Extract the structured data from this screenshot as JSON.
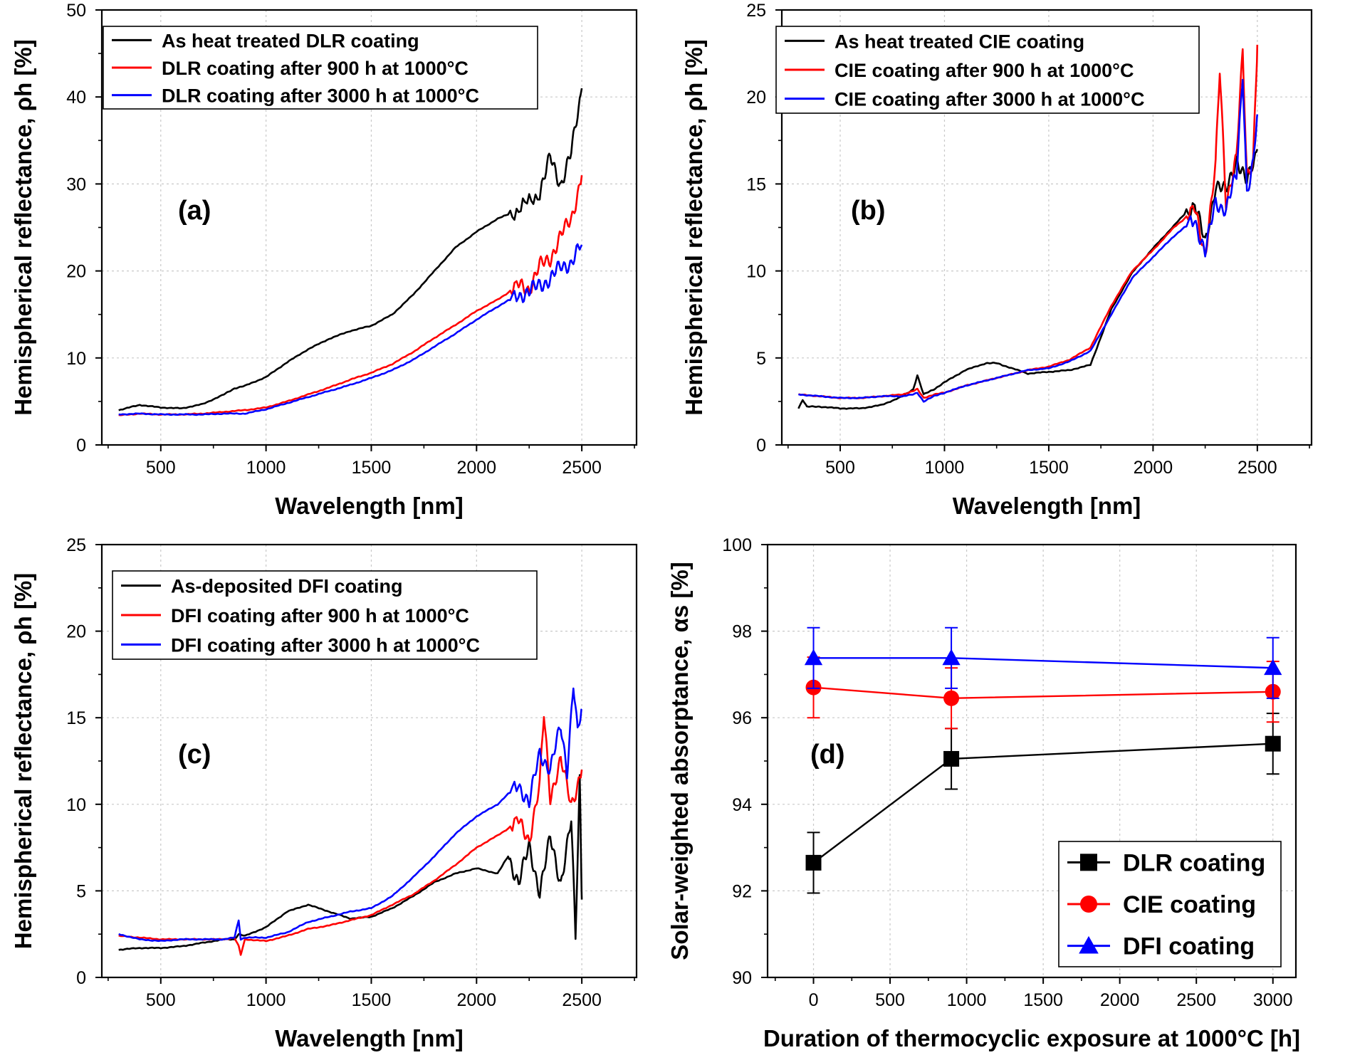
{
  "figure_title": "",
  "chart_data": [
    {
      "panel": "(a)",
      "type": "line",
      "xlabel": "Wavelength [nm]",
      "ylabel": "Hemispherical reflectance, ρh [%]",
      "xlim": [
        220,
        2760
      ],
      "ylim": [
        0,
        50
      ],
      "xticks": [
        500,
        1000,
        1500,
        2000,
        2500
      ],
      "yticks": [
        0,
        10,
        20,
        30,
        40,
        50
      ],
      "grid": true,
      "legend_position": "top-left",
      "series": [
        {
          "name": "As heat treated DLR coating",
          "color": "#000000",
          "x": [
            300,
            400,
            500,
            600,
            700,
            800,
            850,
            900,
            1000,
            1100,
            1200,
            1300,
            1400,
            1500,
            1600,
            1700,
            1800,
            1900,
            2000,
            2100,
            2200,
            2300,
            2350,
            2400,
            2450,
            2500
          ],
          "y": [
            4.0,
            4.6,
            4.3,
            4.2,
            4.7,
            5.8,
            6.5,
            6.8,
            7.8,
            9.5,
            11.0,
            12.2,
            13.1,
            13.7,
            15.0,
            17.3,
            20.0,
            22.7,
            24.5,
            26.0,
            27.0,
            29.0,
            33.0,
            30.0,
            33.5,
            41.0
          ]
        },
        {
          "name": "DLR coating after 900 h at 1000°C",
          "color": "#ff0000",
          "x": [
            300,
            400,
            500,
            600,
            700,
            800,
            900,
            1000,
            1100,
            1200,
            1300,
            1400,
            1500,
            1600,
            1700,
            1800,
            1900,
            2000,
            2100,
            2200,
            2250,
            2300,
            2350,
            2400,
            2450,
            2500
          ],
          "y": [
            3.4,
            3.6,
            3.5,
            3.5,
            3.6,
            3.8,
            4.0,
            4.3,
            5.0,
            5.8,
            6.6,
            7.5,
            8.3,
            9.3,
            10.7,
            12.3,
            13.8,
            15.4,
            16.7,
            18.3,
            18.0,
            20.5,
            21.5,
            24.0,
            26.0,
            31.0
          ]
        },
        {
          "name": "DLR coating after 3000 h at 1000°C",
          "color": "#0000ff",
          "x": [
            300,
            400,
            500,
            600,
            700,
            800,
            900,
            1000,
            1100,
            1200,
            1300,
            1400,
            1500,
            1600,
            1700,
            1800,
            1900,
            2000,
            2100,
            2200,
            2250,
            2300,
            2350,
            2400,
            2450,
            2500
          ],
          "y": [
            3.5,
            3.6,
            3.5,
            3.5,
            3.5,
            3.6,
            3.6,
            4.1,
            4.8,
            5.5,
            6.2,
            6.9,
            7.7,
            8.6,
            9.8,
            11.3,
            12.8,
            14.4,
            15.9,
            17.3,
            17.5,
            18.5,
            19.0,
            20.5,
            21.0,
            23.0
          ]
        }
      ]
    },
    {
      "panel": "(b)",
      "type": "line",
      "xlabel": "Wavelength [nm]",
      "ylabel": "Hemispherical reflectance, ρh [%]",
      "xlim": [
        220,
        2760
      ],
      "ylim": [
        0,
        25
      ],
      "xticks": [
        500,
        1000,
        1500,
        2000,
        2500
      ],
      "yticks": [
        0,
        5,
        10,
        15,
        20,
        25
      ],
      "grid": true,
      "legend_position": "top-left",
      "series": [
        {
          "name": "As heat treated CIE coating",
          "color": "#000000",
          "x": [
            300,
            320,
            340,
            400,
            500,
            600,
            700,
            800,
            850,
            870,
            900,
            950,
            1000,
            1100,
            1200,
            1250,
            1300,
            1400,
            1500,
            1600,
            1700,
            1800,
            1900,
            2000,
            2100,
            2200,
            2250,
            2300,
            2350,
            2400,
            2450,
            2500
          ],
          "y": [
            2.1,
            2.6,
            2.2,
            2.2,
            2.1,
            2.1,
            2.3,
            2.8,
            3.2,
            4.0,
            2.9,
            3.2,
            3.6,
            4.3,
            4.7,
            4.7,
            4.5,
            4.1,
            4.2,
            4.3,
            4.6,
            7.8,
            9.9,
            11.3,
            12.6,
            13.9,
            11.5,
            15.0,
            14.5,
            16.5,
            15.0,
            17.0
          ]
        },
        {
          "name": "CIE coating after 900 h at 1000°C",
          "color": "#ff0000",
          "x": [
            300,
            400,
            500,
            600,
            700,
            800,
            850,
            870,
            900,
            950,
            1000,
            1100,
            1200,
            1300,
            1400,
            1500,
            1600,
            1700,
            1800,
            1900,
            2000,
            2100,
            2200,
            2250,
            2300,
            2320,
            2350,
            2400,
            2430,
            2450,
            2480,
            2500
          ],
          "y": [
            2.9,
            2.8,
            2.7,
            2.7,
            2.8,
            2.9,
            3.1,
            3.2,
            2.7,
            2.9,
            3.0,
            3.4,
            3.7,
            4.0,
            4.3,
            4.5,
            4.9,
            5.6,
            8.0,
            10.0,
            11.2,
            12.5,
            13.5,
            11.0,
            16.0,
            21.5,
            14.0,
            16.5,
            22.5,
            15.5,
            16.5,
            23.0
          ]
        },
        {
          "name": "CIE coating after 3000 h at 1000°C",
          "color": "#0000ff",
          "x": [
            300,
            400,
            500,
            600,
            700,
            800,
            850,
            870,
            900,
            950,
            1000,
            1100,
            1200,
            1300,
            1400,
            1500,
            1600,
            1700,
            1800,
            1900,
            2000,
            2100,
            2200,
            2250,
            2300,
            2350,
            2400,
            2430,
            2450,
            2480,
            2500
          ],
          "y": [
            2.9,
            2.8,
            2.7,
            2.7,
            2.8,
            2.8,
            2.9,
            3.0,
            2.5,
            2.8,
            3.0,
            3.4,
            3.7,
            4.0,
            4.3,
            4.4,
            4.8,
            5.4,
            7.5,
            9.6,
            10.8,
            12.0,
            13.0,
            11.0,
            14.0,
            13.5,
            15.5,
            21.5,
            14.5,
            16.0,
            19.0
          ]
        }
      ]
    },
    {
      "panel": "(c)",
      "type": "line",
      "xlabel": "Wavelength [nm]",
      "ylabel": "Hemispherical reflectance, ρh [%]",
      "xlim": [
        220,
        2760
      ],
      "ylim": [
        0,
        25
      ],
      "xticks": [
        500,
        1000,
        1500,
        2000,
        2500
      ],
      "yticks": [
        0,
        5,
        10,
        15,
        20,
        25
      ],
      "grid": true,
      "legend_position": "top-left",
      "series": [
        {
          "name": "As-deposited DFI coating",
          "color": "#000000",
          "x": [
            300,
            400,
            500,
            600,
            700,
            800,
            850,
            870,
            900,
            1000,
            1100,
            1200,
            1300,
            1400,
            1500,
            1600,
            1700,
            1800,
            1900,
            2000,
            2100,
            2150,
            2200,
            2250,
            2300,
            2350,
            2400,
            2450,
            2470,
            2490,
            2500
          ],
          "y": [
            1.6,
            1.7,
            1.7,
            1.8,
            2.0,
            2.2,
            2.2,
            2.5,
            2.4,
            2.9,
            3.8,
            4.2,
            3.8,
            3.4,
            3.5,
            4.0,
            4.7,
            5.5,
            6.0,
            6.3,
            6.0,
            7.0,
            5.5,
            7.5,
            5.0,
            8.0,
            5.5,
            9.0,
            2.2,
            11.5,
            4.5
          ]
        },
        {
          "name": "DFI coating after 900 h at 1000°C",
          "color": "#ff0000",
          "x": [
            300,
            400,
            500,
            600,
            700,
            800,
            850,
            870,
            880,
            900,
            1000,
            1100,
            1200,
            1300,
            1400,
            1500,
            1600,
            1700,
            1800,
            1900,
            2000,
            2100,
            2200,
            2250,
            2300,
            2320,
            2350,
            2400,
            2450,
            2500
          ],
          "y": [
            2.4,
            2.3,
            2.2,
            2.2,
            2.2,
            2.2,
            2.3,
            1.8,
            1.3,
            2.2,
            2.1,
            2.4,
            2.8,
            3.0,
            3.3,
            3.6,
            4.2,
            4.8,
            5.6,
            6.5,
            7.5,
            8.2,
            9.0,
            8.0,
            11.0,
            15.2,
            10.5,
            12.5,
            10.0,
            12.0
          ]
        },
        {
          "name": "DFI coating after 3000 h at 1000°C",
          "color": "#0000ff",
          "x": [
            300,
            400,
            500,
            600,
            700,
            800,
            850,
            870,
            880,
            900,
            1000,
            1100,
            1200,
            1300,
            1400,
            1500,
            1600,
            1700,
            1800,
            1900,
            2000,
            2100,
            2200,
            2250,
            2300,
            2350,
            2400,
            2430,
            2460,
            2480,
            2500
          ],
          "y": [
            2.5,
            2.2,
            2.1,
            2.2,
            2.2,
            2.2,
            2.3,
            3.3,
            2.2,
            2.3,
            2.3,
            2.6,
            3.2,
            3.5,
            3.8,
            4.0,
            4.7,
            5.8,
            7.0,
            8.3,
            9.3,
            10.0,
            11.2,
            10.0,
            13.0,
            12.0,
            14.5,
            12.0,
            17.0,
            14.0,
            15.5
          ]
        }
      ]
    },
    {
      "panel": "(d)",
      "type": "scatter",
      "xlabel": "Duration of thermocyclic exposure at 1000°C [h]",
      "ylabel": "Solar-weighted absorptance, αs [%]",
      "xlim": [
        -300,
        3150
      ],
      "ylim": [
        90,
        100
      ],
      "xticks": [
        0,
        500,
        1000,
        1500,
        2000,
        2500,
        3000
      ],
      "yticks": [
        90,
        92,
        94,
        96,
        98,
        100
      ],
      "grid": true,
      "legend_position": "bottom-right",
      "series": [
        {
          "name": "DLR coating",
          "color": "#000000",
          "marker": "square",
          "x": [
            0,
            900,
            3000
          ],
          "y": [
            92.65,
            95.05,
            95.4
          ],
          "err": [
            0.7,
            0.7,
            0.7
          ]
        },
        {
          "name": "CIE coating",
          "color": "#ff0000",
          "marker": "circle",
          "x": [
            0,
            900,
            3000
          ],
          "y": [
            96.7,
            96.45,
            96.6
          ],
          "err": [
            0.7,
            0.7,
            0.7
          ]
        },
        {
          "name": "DFI coating",
          "color": "#0000ff",
          "marker": "triangle",
          "x": [
            0,
            900,
            3000
          ],
          "y": [
            97.38,
            97.38,
            97.15
          ],
          "err": [
            0.7,
            0.7,
            0.7
          ]
        }
      ]
    }
  ]
}
